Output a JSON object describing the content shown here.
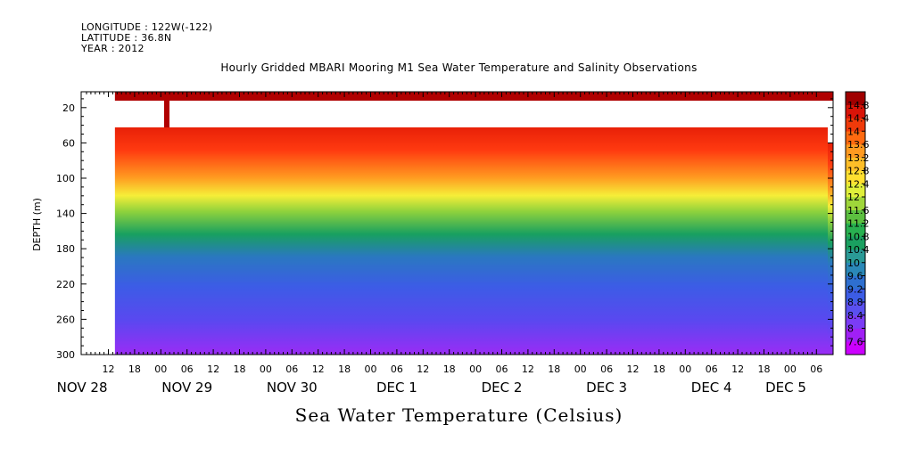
{
  "meta": {
    "longitude": "LONGITUDE : 122W(-122)",
    "latitude": "LATITUDE : 36.8N",
    "year": "YEAR : 2012"
  },
  "chart_data": {
    "type": "heatmap",
    "title": "Hourly Gridded MBARI Mooring M1 Sea Water Temperature and Salinity Observations",
    "xlabel": "Sea Water Temperature (Celsius)",
    "ylabel": "DEPTH (m)",
    "x_unit": "hours since 2012-11-28 00:00",
    "xlim": [
      6,
      162
    ],
    "ylim": [
      300,
      1
    ],
    "y_ticks": [
      20,
      60,
      100,
      140,
      180,
      220,
      260,
      300
    ],
    "x_hour_ticks": [
      {
        "h": 12,
        "label": "12"
      },
      {
        "h": 18,
        "label": "18"
      },
      {
        "h": 24,
        "label": "00"
      },
      {
        "h": 30,
        "label": "06"
      },
      {
        "h": 36,
        "label": "12"
      },
      {
        "h": 42,
        "label": "18"
      },
      {
        "h": 48,
        "label": "00"
      },
      {
        "h": 54,
        "label": "06"
      },
      {
        "h": 60,
        "label": "12"
      },
      {
        "h": 66,
        "label": "18"
      },
      {
        "h": 72,
        "label": "00"
      },
      {
        "h": 78,
        "label": "06"
      },
      {
        "h": 84,
        "label": "12"
      },
      {
        "h": 90,
        "label": "18"
      },
      {
        "h": 96,
        "label": "00"
      },
      {
        "h": 102,
        "label": "06"
      },
      {
        "h": 108,
        "label": "12"
      },
      {
        "h": 114,
        "label": "18"
      },
      {
        "h": 120,
        "label": "00"
      },
      {
        "h": 126,
        "label": "06"
      },
      {
        "h": 132,
        "label": "12"
      },
      {
        "h": 138,
        "label": "18"
      },
      {
        "h": 144,
        "label": "00"
      },
      {
        "h": 150,
        "label": "06"
      },
      {
        "h": 156,
        "label": "12"
      },
      {
        "h": 162,
        "label": "18"
      },
      {
        "h": 168,
        "label": "00"
      },
      {
        "h": 174,
        "label": "06"
      }
    ],
    "x_day_labels": [
      {
        "h": 6,
        "label": "NOV 28"
      },
      {
        "h": 30,
        "label": "NOV 29"
      },
      {
        "h": 54,
        "label": "NOV 30"
      },
      {
        "h": 78,
        "label": "DEC  1"
      },
      {
        "h": 102,
        "label": "DEC  2"
      },
      {
        "h": 126,
        "label": "DEC  3"
      },
      {
        "h": 150,
        "label": "DEC  4"
      },
      {
        "h": 167,
        "label": "DEC  5"
      }
    ],
    "data_start_hour": 13.5,
    "colorbar": {
      "levels": [
        "7.6",
        "8",
        "8.4",
        "8.8",
        "9.2",
        "9.6",
        "10",
        "10.4",
        "10.8",
        "11.2",
        "11.6",
        "12",
        "12.4",
        "12.8",
        "13.2",
        "13.6",
        "14",
        "14.4",
        "14.8"
      ],
      "colors": [
        "#cc00ff",
        "#a020f5",
        "#7b3cf5",
        "#5a50f0",
        "#3c5ce6",
        "#2e6fd0",
        "#2a88b8",
        "#2a9a96",
        "#1aa060",
        "#28b050",
        "#5cc040",
        "#9fd63a",
        "#dfef3a",
        "#ffe030",
        "#ffbe28",
        "#ff9a20",
        "#ff6a10",
        "#f03a0a",
        "#d81408",
        "#a00000"
      ]
    },
    "profile": [
      {
        "depth": 20,
        "temperature": 14.8
      },
      {
        "depth": 60,
        "temperature": 14.2
      },
      {
        "depth": 100,
        "temperature": 12.6
      },
      {
        "depth": 140,
        "temperature": 10.8
      },
      {
        "depth": 180,
        "temperature": 9.6
      },
      {
        "depth": 220,
        "temperature": 9.0
      },
      {
        "depth": 260,
        "temperature": 8.5
      },
      {
        "depth": 300,
        "temperature": 8.0
      }
    ]
  }
}
